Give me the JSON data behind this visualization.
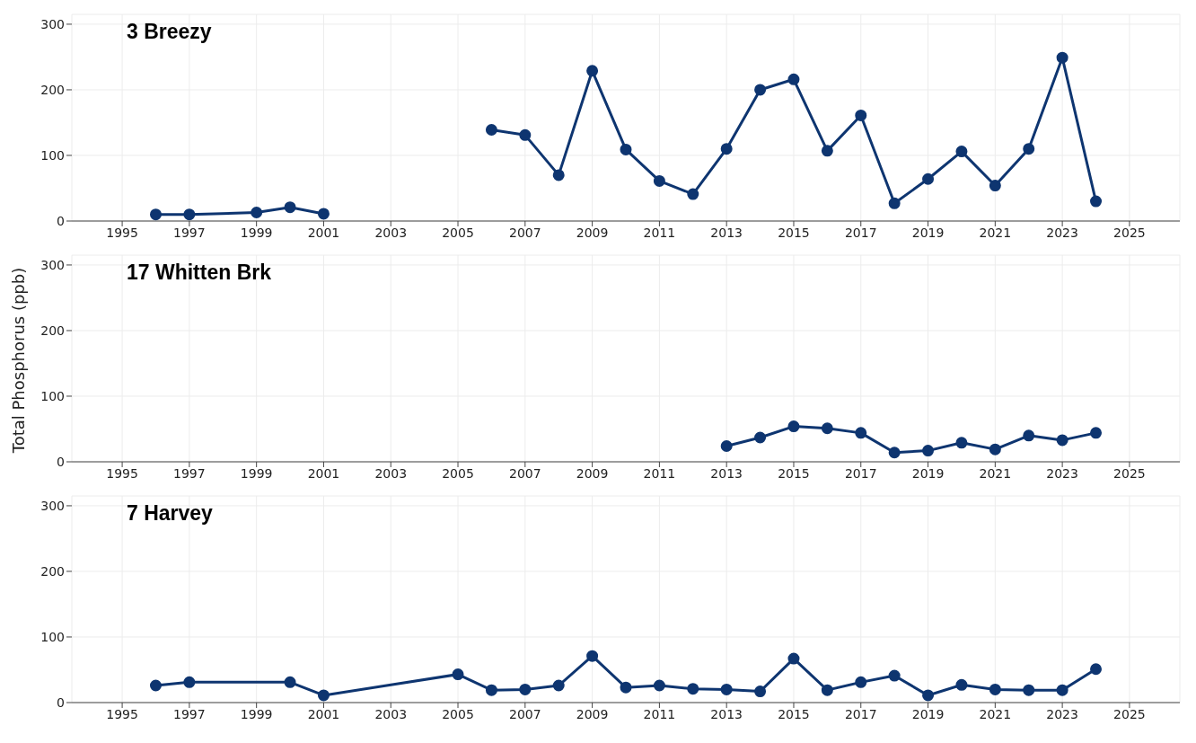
{
  "chart_data": [
    {
      "type": "line",
      "title": "3 Breezy",
      "x": [
        1996,
        1997,
        1999,
        2000,
        2001,
        2002,
        2003,
        2004,
        2005,
        2006,
        2007,
        2008,
        2009,
        2010,
        2011,
        2012,
        2013,
        2014,
        2015,
        2016,
        2017,
        2018,
        2019,
        2020,
        2021,
        2022,
        2023,
        2024
      ],
      "series": [
        {
          "color": "#0e3570",
          "values": [
            10,
            10,
            13,
            21,
            11,
            null,
            null,
            null,
            null,
            139,
            131,
            70,
            229,
            109,
            61,
            41,
            110,
            200,
            216,
            107,
            161,
            27,
            64,
            106,
            54,
            110,
            249,
            30
          ]
        }
      ],
      "xlim": [
        1993.5,
        2026.5
      ],
      "xticks": [
        1995,
        1997,
        1999,
        2001,
        2003,
        2005,
        2007,
        2009,
        2011,
        2013,
        2015,
        2017,
        2019,
        2021,
        2023,
        2025
      ],
      "ylim": [
        0,
        315
      ],
      "yticks": [
        0,
        100,
        200,
        300
      ],
      "grid": true,
      "marker": "circle",
      "line_style": "solid"
    },
    {
      "type": "line",
      "title": "17 Whitten Brk",
      "ylabel": "Total Phosphorus (ppb)",
      "x": [
        2013,
        2014,
        2015,
        2016,
        2017,
        2018,
        2019,
        2020,
        2021,
        2022,
        2023,
        2024
      ],
      "series": [
        {
          "color": "#0e3570",
          "values": [
            24,
            37,
            54,
            51,
            44,
            14,
            17,
            29,
            19,
            40,
            33,
            44
          ]
        }
      ],
      "xlim": [
        1993.5,
        2026.5
      ],
      "xticks": [
        1995,
        1997,
        1999,
        2001,
        2003,
        2005,
        2007,
        2009,
        2011,
        2013,
        2015,
        2017,
        2019,
        2021,
        2023,
        2025
      ],
      "ylim": [
        0,
        315
      ],
      "yticks": [
        0,
        100,
        200,
        300
      ],
      "grid": true,
      "marker": "circle",
      "line_style": "solid"
    },
    {
      "type": "line",
      "title": "7 Harvey",
      "x": [
        1996,
        1997,
        2000,
        2001,
        2005,
        2006,
        2007,
        2008,
        2009,
        2010,
        2011,
        2012,
        2013,
        2014,
        2015,
        2016,
        2017,
        2018,
        2019,
        2020,
        2021,
        2022,
        2023,
        2024
      ],
      "series": [
        {
          "color": "#0e3570",
          "values": [
            26,
            31,
            31,
            11,
            43,
            19,
            20,
            26,
            71,
            23,
            26,
            21,
            20,
            17,
            67,
            19,
            31,
            41,
            11,
            27,
            20,
            19,
            19,
            51
          ]
        }
      ],
      "xlim": [
        1993.5,
        2026.5
      ],
      "xticks": [
        1995,
        1997,
        1999,
        2001,
        2003,
        2005,
        2007,
        2009,
        2011,
        2013,
        2015,
        2017,
        2019,
        2021,
        2023,
        2025
      ],
      "ylim": [
        0,
        315
      ],
      "yticks": [
        0,
        100,
        200,
        300
      ],
      "grid": true,
      "marker": "circle",
      "line_style": "solid"
    }
  ]
}
